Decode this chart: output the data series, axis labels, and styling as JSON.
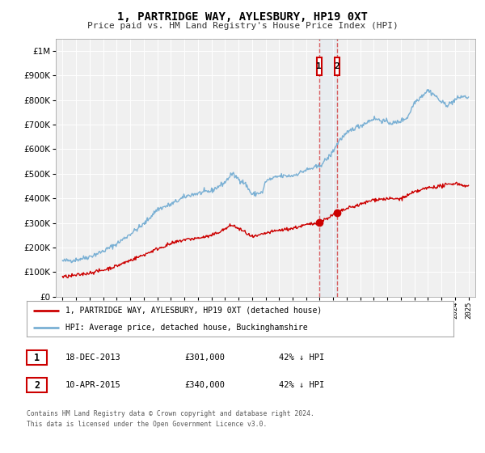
{
  "title": "1, PARTRIDGE WAY, AYLESBURY, HP19 0XT",
  "subtitle": "Price paid vs. HM Land Registry's House Price Index (HPI)",
  "background_color": "#ffffff",
  "plot_bg_color": "#f0f0f0",
  "grid_color": "#ffffff",
  "red_line_color": "#cc0000",
  "blue_line_color": "#7ab0d4",
  "marker_color": "#cc0000",
  "sale1_date_num": 2013.96,
  "sale2_date_num": 2015.27,
  "sale1_price": 301000,
  "sale2_price": 340000,
  "sale1_label": "1",
  "sale2_label": "2",
  "sale1_date_str": "18-DEC-2013",
  "sale1_price_str": "£301,000",
  "sale1_hpi_str": "42% ↓ HPI",
  "sale2_date_str": "10-APR-2015",
  "sale2_price_str": "£340,000",
  "sale2_hpi_str": "42% ↓ HPI",
  "legend_label_red": "1, PARTRIDGE WAY, AYLESBURY, HP19 0XT (detached house)",
  "legend_label_blue": "HPI: Average price, detached house, Buckinghamshire",
  "footer_line1": "Contains HM Land Registry data © Crown copyright and database right 2024.",
  "footer_line2": "This data is licensed under the Open Government Licence v3.0.",
  "ylim_max": 1050000,
  "xmin": 1994.5,
  "xmax": 2025.5
}
